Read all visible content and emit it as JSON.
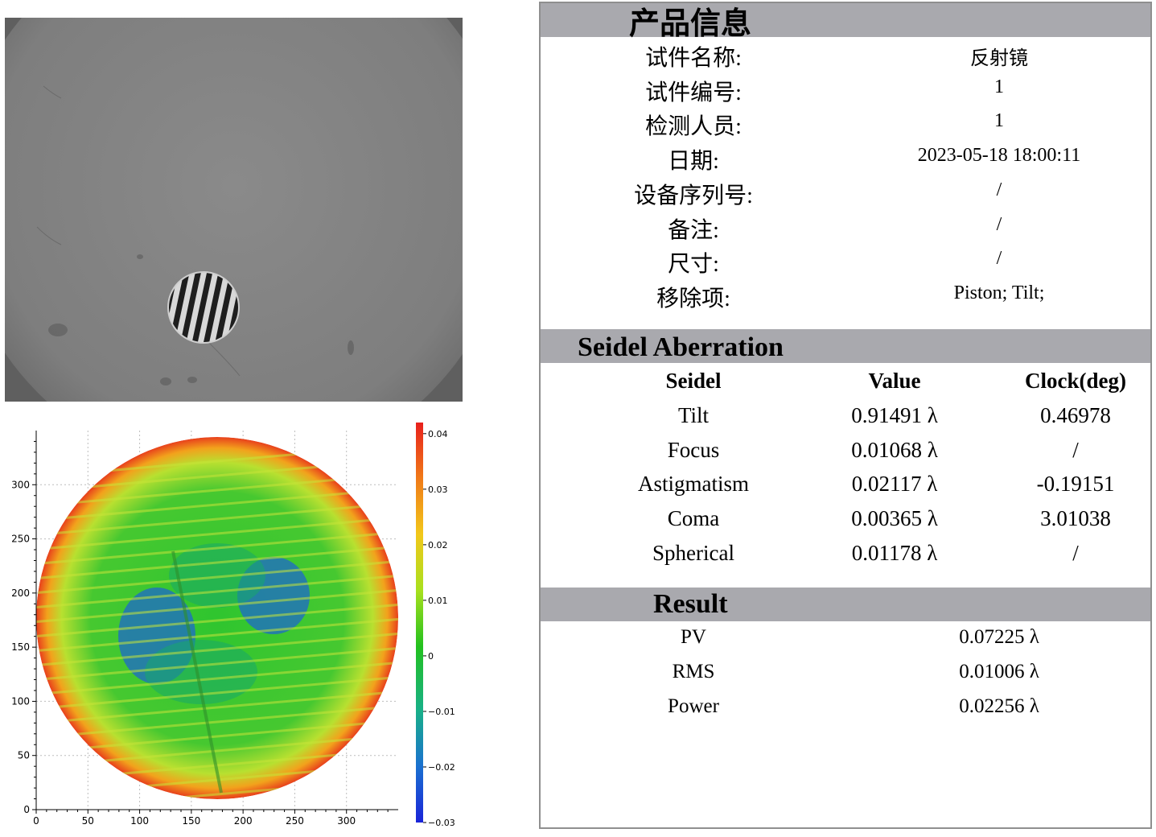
{
  "product_info": {
    "title": "产品信息",
    "rows": [
      {
        "label": "试件名称:",
        "value": "反射镜"
      },
      {
        "label": "试件编号:",
        "value": "1"
      },
      {
        "label": "检测人员:",
        "value": "1"
      },
      {
        "label": "日期:",
        "value": "2023-05-18 18:00:11"
      },
      {
        "label": "设备序列号:",
        "value": "/"
      },
      {
        "label": "备注:",
        "value": "/"
      },
      {
        "label": "尺寸:",
        "value": "/"
      },
      {
        "label": "移除项:",
        "value": "Piston; Tilt;"
      }
    ]
  },
  "seidel": {
    "title": "Seidel Aberration",
    "headers": [
      "Seidel",
      "Value",
      "Clock(deg)"
    ],
    "rows": [
      {
        "name": "Tilt",
        "value": "0.91491 λ",
        "clock": "0.46978"
      },
      {
        "name": "Focus",
        "value": "0.01068 λ",
        "clock": "/"
      },
      {
        "name": "Astigmatism",
        "value": "0.02117 λ",
        "clock": "-0.19151"
      },
      {
        "name": "Coma",
        "value": "0.00365 λ",
        "clock": "3.01038"
      },
      {
        "name": "Spherical",
        "value": "0.01178 λ",
        "clock": "/"
      }
    ]
  },
  "result": {
    "title": "Result",
    "rows": [
      {
        "label": "PV",
        "value": "0.07225 λ"
      },
      {
        "label": "RMS",
        "value": "0.01006 λ"
      },
      {
        "label": "Power",
        "value": "0.02256 λ"
      }
    ]
  },
  "chart_data": {
    "type": "heatmap",
    "x_ticks": [
      "0",
      "50",
      "100",
      "150",
      "200",
      "250",
      "300"
    ],
    "y_ticks": [
      "0",
      "50",
      "100",
      "150",
      "200",
      "250",
      "300"
    ],
    "xlim": [
      0,
      350
    ],
    "ylim": [
      0,
      350
    ],
    "colorbar_ticks": [
      "0.04",
      "0.03",
      "0.02",
      "0.01",
      "0",
      "−0.01",
      "−0.02",
      "−0.03"
    ],
    "colorbar_range": [
      -0.03,
      0.042
    ],
    "grid": true,
    "colors": {
      "high": "#e8201c",
      "mid": "#22c11e",
      "low": "#1a24d8"
    }
  }
}
